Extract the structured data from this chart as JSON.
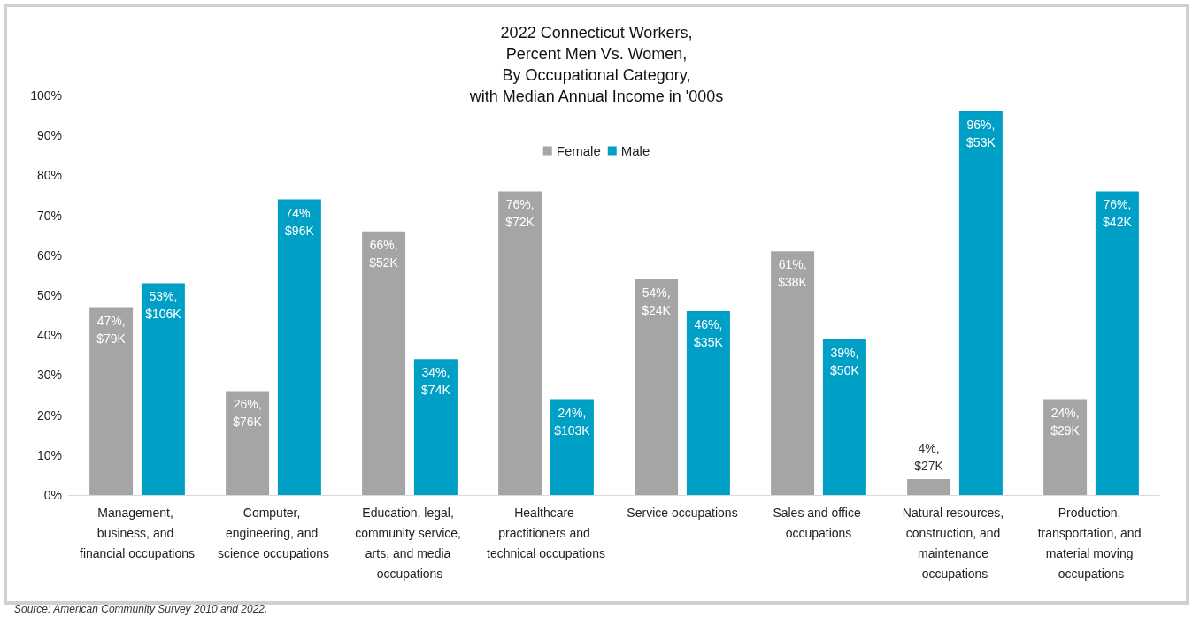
{
  "chart_data": {
    "type": "bar",
    "title": "2022 Connecticut Workers,\nPercent Men Vs. Women,\nBy Occupational Category,\nwith Median Annual Income in '000s",
    "categories": [
      "Management, business, and financial occupations",
      "Computer, engineering, and science occupations",
      "Education, legal, community service, arts, and media occupations",
      "Healthcare practitioners and technical occupations",
      "Service occupations",
      "Sales and office occupations",
      "Natural resources, construction, and maintenance occupations",
      "Production, transportation, and material moving occupations"
    ],
    "series": [
      {
        "name": "Female",
        "color": "#a5a5a6",
        "values": [
          47,
          26,
          66,
          76,
          54,
          61,
          4,
          24
        ],
        "value_labels": [
          "47%, $79K",
          "26%, $76K",
          "66%, $52K",
          "76%, $72K",
          "54%, $24K",
          "61%, $38K",
          "4%, $27K",
          "24%, $29K"
        ]
      },
      {
        "name": "Male",
        "color": "#00a0c6",
        "values": [
          53,
          74,
          34,
          24,
          46,
          39,
          96,
          76
        ],
        "value_labels": [
          "53%, $106K",
          "74%, $96K",
          "34%, $74K",
          "24%, $103K",
          "46%, $35K",
          "39%, $50K",
          "96%, $53K",
          "76%, $42K"
        ]
      }
    ],
    "ylim": [
      0,
      100
    ],
    "yticks": [
      {
        "value": 0,
        "label": "0%"
      },
      {
        "value": 10,
        "label": "10%"
      },
      {
        "value": 20,
        "label": "20%"
      },
      {
        "value": 30,
        "label": "30%"
      },
      {
        "value": 40,
        "label": "40%"
      },
      {
        "value": 50,
        "label": "50%"
      },
      {
        "value": 60,
        "label": "60%"
      },
      {
        "value": 70,
        "label": "70%"
      },
      {
        "value": 80,
        "label": "80%"
      },
      {
        "value": 90,
        "label": "90%"
      },
      {
        "value": 100,
        "label": "100%"
      }
    ],
    "grid": false,
    "legend": "top",
    "annotations": [
      "Source: American Community Survey 2010 and 2022."
    ]
  }
}
